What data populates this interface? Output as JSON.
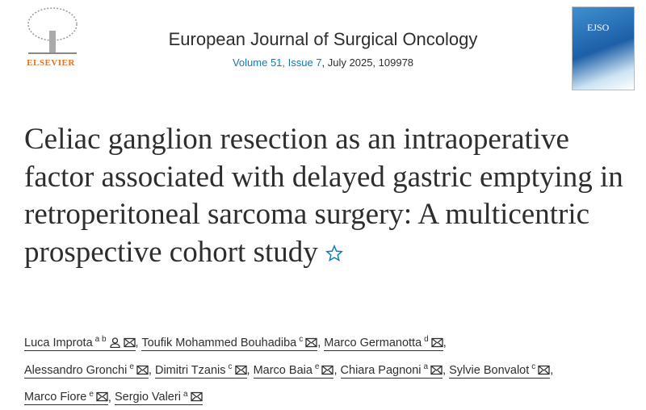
{
  "header": {
    "publisher": "ELSEVIER",
    "journal": "European Journal of Surgical Oncology",
    "volume_link": "Volume 51, Issue 7",
    "volume_rest": ", July 2025, 109978",
    "cover_label": "EJSO"
  },
  "article": {
    "title": "Celiac ganglion resection as an intraoperative factor associated with delayed gastric emptying in retroperitoneal sarcoma surgery: A multicentric prospective cohort study",
    "authors": [
      {
        "name": "Luca Improta",
        "sup": "a b",
        "sep": ","
      },
      {
        "name": "Toufik Mohammed Bouhadiba",
        "sup": "c",
        "sep": ","
      },
      {
        "name": "Marco Germanotta",
        "sup": "d",
        "sep": ","
      },
      {
        "name": "Alessandro Gronchi",
        "sup": "e",
        "sep": ","
      },
      {
        "name": "Dimitri Tzanis",
        "sup": "c",
        "sep": ","
      },
      {
        "name": "Marco Baia",
        "sup": "e",
        "sep": ","
      },
      {
        "name": "Chiara Pagnoni",
        "sup": "a",
        "sep": ","
      },
      {
        "name": "Sylvie Bonvalot",
        "sup": "c",
        "sep": ","
      },
      {
        "name": "Marco Fiore",
        "sup": "e",
        "sep": ","
      },
      {
        "name": "Sergio Valeri",
        "sup": "a"
      }
    ]
  }
}
